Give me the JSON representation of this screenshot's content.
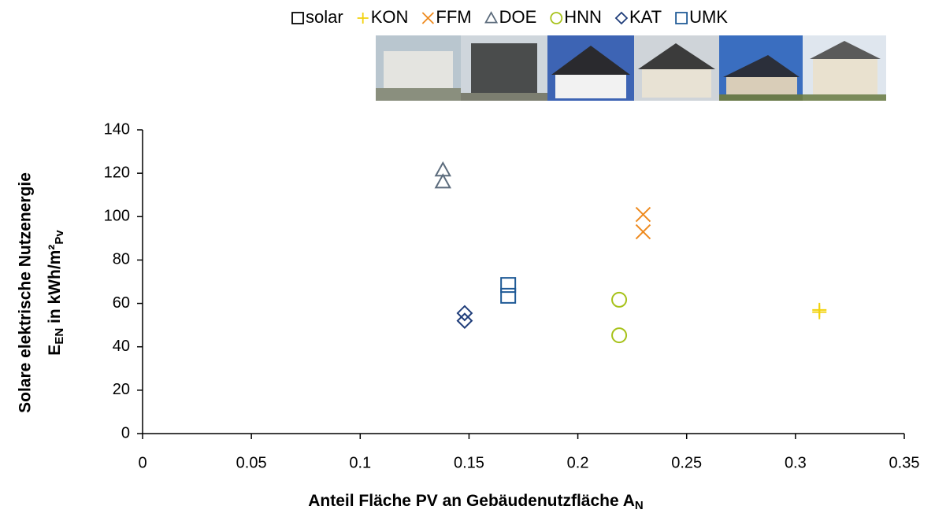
{
  "chart_data": {
    "type": "scatter",
    "x_label": {
      "main": "Anteil Fläche PV an Gebäudenutzfläche A",
      "sub": "N"
    },
    "y_label": {
      "line1": "Solare elektrische Nutzenergie",
      "main": "E",
      "sub": "EN",
      "rest": " in kWh/m²",
      "sub2": "Pv"
    },
    "xlim": [
      0,
      0.35
    ],
    "xticks": [
      0,
      0.05,
      0.1,
      0.15,
      0.2,
      0.25,
      0.3,
      0.35
    ],
    "ylim": [
      0,
      140
    ],
    "yticks": [
      0,
      20,
      40,
      60,
      80,
      100,
      120,
      140
    ],
    "grid": false,
    "series": [
      {
        "name": "solar",
        "color": "#000000",
        "marker": "square",
        "x": [],
        "values": []
      },
      {
        "name": "KON",
        "color": "#f2d20c",
        "marker": "plus",
        "x": [
          0.311,
          0.311
        ],
        "values": [
          56,
          57
        ]
      },
      {
        "name": "FFM",
        "color": "#ee8a1e",
        "marker": "cross",
        "x": [
          0.23,
          0.23
        ],
        "values": [
          101,
          93
        ]
      },
      {
        "name": "DOE",
        "color": "#5b6b7c",
        "marker": "triangle",
        "x": [
          0.138,
          0.138
        ],
        "values": [
          121.5,
          116
        ]
      },
      {
        "name": "HNN",
        "color": "#a7c21a",
        "marker": "circle",
        "x": [
          0.219,
          0.219
        ],
        "values": [
          61.7,
          45.3
        ]
      },
      {
        "name": "KAT",
        "color": "#1f3d7a",
        "marker": "diamond",
        "x": [
          0.148,
          0.148
        ],
        "values": [
          55.5,
          52
        ]
      },
      {
        "name": "UMK",
        "color": "#1f5a96",
        "marker": "square",
        "x": [
          0.168,
          0.168
        ],
        "values": [
          68.5,
          63.5
        ]
      }
    ]
  }
}
